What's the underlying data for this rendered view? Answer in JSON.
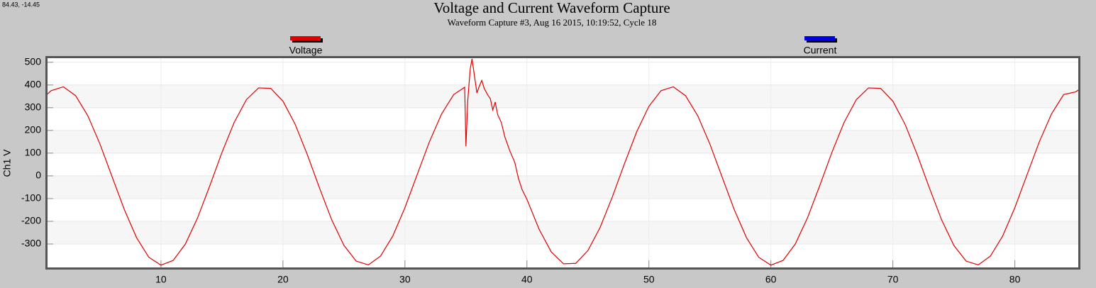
{
  "cursor_readout": "84.43, -14.45",
  "chart_data": {
    "type": "line",
    "title": "Voltage and Current Waveform Capture",
    "subtitle": "Waveform Capture #3, Aug 16 2015, 10:19:52,  Cycle 18",
    "y_label": "Ch1 V",
    "xlim": [
      0.7,
      85.2
    ],
    "xticks": [
      10,
      20,
      30,
      40,
      50,
      60,
      70,
      80
    ],
    "ylim": [
      -403,
      518
    ],
    "yticks": [
      -300,
      -200,
      -100,
      0,
      100,
      200,
      300,
      400,
      500
    ],
    "grid": true,
    "series": [
      {
        "name": "Voltage",
        "color": "#e00000",
        "x": [
          0.7,
          1,
          2,
          3,
          4,
          5,
          6,
          7,
          8,
          9,
          10,
          11,
          12,
          13,
          14,
          15,
          16,
          17,
          18,
          19,
          20,
          21,
          22,
          23,
          24,
          25,
          26,
          27,
          28,
          29,
          30,
          31,
          32,
          33,
          34,
          34.9,
          35,
          35.15,
          35.35,
          35.5,
          35.7,
          35.9,
          36.1,
          36.3,
          36.5,
          36.8,
          37,
          37.2,
          37.4,
          37.6,
          37.9,
          38.2,
          38.6,
          39,
          39.3,
          39.6,
          40,
          41,
          42,
          43,
          44,
          45,
          46,
          47,
          48,
          49,
          50,
          51,
          52,
          53,
          54,
          55,
          56,
          57,
          58,
          59,
          60,
          61,
          62,
          63,
          64,
          65,
          66,
          67,
          68,
          69,
          70,
          71,
          72,
          73,
          74,
          75,
          76,
          77,
          78,
          79,
          80,
          81,
          82,
          83,
          84,
          85,
          85.2
        ],
        "values": [
          360,
          375,
          392,
          353,
          265,
          140,
          -5,
          -149,
          -272,
          -358,
          -393,
          -372,
          -300,
          -185,
          -44,
          103,
          235,
          335,
          387,
          385,
          329,
          227,
          93,
          -54,
          -194,
          -306,
          -375,
          -392,
          -353,
          -265,
          -140,
          5,
          149,
          272,
          358,
          390,
          130,
          330,
          470,
          515,
          440,
          365,
          395,
          420,
          385,
          355,
          340,
          290,
          325,
          270,
          235,
          170,
          110,
          60,
          -10,
          -60,
          -103,
          -235,
          -335,
          -387,
          -385,
          -329,
          -227,
          -93,
          54,
          194,
          306,
          375,
          392,
          353,
          265,
          140,
          -5,
          -149,
          -272,
          -358,
          -393,
          -372,
          -300,
          -185,
          -44,
          103,
          235,
          335,
          387,
          385,
          329,
          227,
          93,
          -54,
          -194,
          -306,
          -375,
          -392,
          -353,
          -265,
          -140,
          5,
          149,
          272,
          358,
          370,
          378
        ]
      },
      {
        "name": "Current",
        "color": "#0000e0",
        "x": [],
        "values": []
      }
    ]
  }
}
